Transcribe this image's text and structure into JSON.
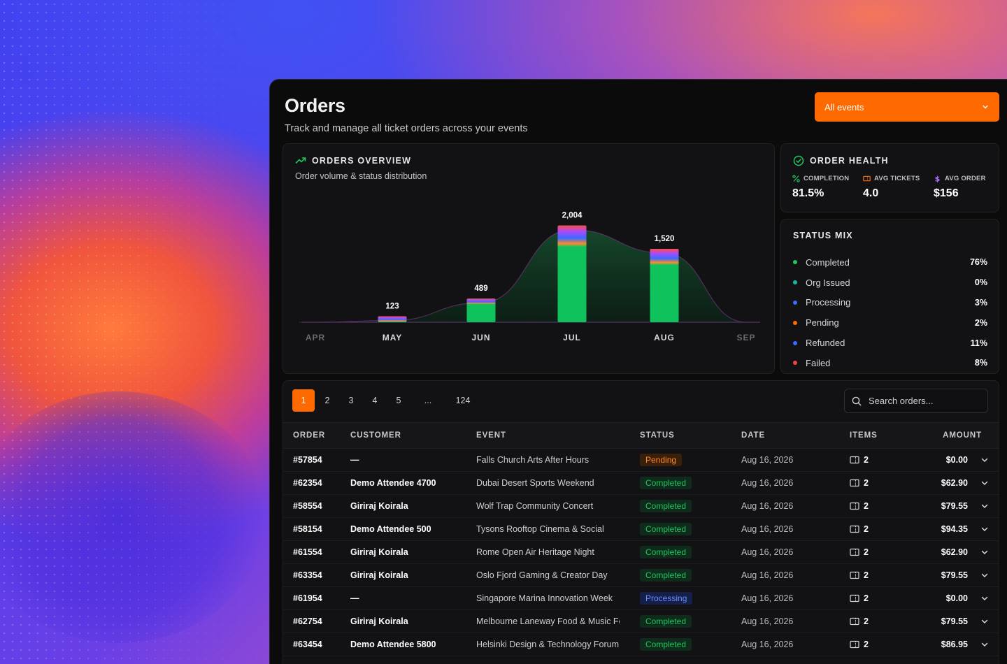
{
  "page": {
    "title": "Orders",
    "subtitle": "Track and manage all ticket orders across your events",
    "event_filter": "All events"
  },
  "overview": {
    "heading": "ORDERS OVERVIEW",
    "subheading": "Order volume & status distribution"
  },
  "chart_data": {
    "type": "bar",
    "categories": [
      "APR",
      "MAY",
      "JUN",
      "JUL",
      "AUG",
      "SEP"
    ],
    "values": [
      0,
      123,
      489,
      2004,
      1520,
      0
    ],
    "value_labels": [
      "",
      "123",
      "489",
      "2,004",
      "1,520",
      ""
    ],
    "colors": {
      "bar": "#10c25c",
      "area": "#0f3a22"
    },
    "ylim": [
      0,
      2100
    ],
    "grid": false
  },
  "health": {
    "heading": "ORDER HEALTH",
    "metrics": [
      {
        "label": "COMPLETION",
        "value": "81.5%",
        "icon": "percent-icon",
        "color": "#22c55e"
      },
      {
        "label": "AVG TICKETS",
        "value": "4.0",
        "icon": "ticket-icon",
        "color": "#ff6a00"
      },
      {
        "label": "AVG ORDER",
        "value": "$156",
        "icon": "dollar-icon",
        "color": "#a970ff"
      }
    ]
  },
  "status_mix": {
    "heading": "STATUS MIX",
    "items": [
      {
        "name": "Completed",
        "value": "76%",
        "color": "#22c55e"
      },
      {
        "name": "Org Issued",
        "value": "0%",
        "color": "#14b8a6"
      },
      {
        "name": "Processing",
        "value": "3%",
        "color": "#3b6cff"
      },
      {
        "name": "Pending",
        "value": "2%",
        "color": "#ff6a00"
      },
      {
        "name": "Refunded",
        "value": "11%",
        "color": "#3b6cff"
      },
      {
        "name": "Failed",
        "value": "8%",
        "color": "#ef4444"
      }
    ]
  },
  "pagination": {
    "pages": [
      "1",
      "2",
      "3",
      "4",
      "5",
      "...",
      "124"
    ],
    "active": "1"
  },
  "search": {
    "placeholder": "Search orders..."
  },
  "table": {
    "headers": {
      "order": "ORDER",
      "customer": "CUSTOMER",
      "event": "EVENT",
      "status": "STATUS",
      "date": "DATE",
      "items": "ITEMS",
      "amount": "AMOUNT"
    },
    "rows": [
      {
        "order": "#57854",
        "customer": "—",
        "event": "Falls Church Arts After Hours",
        "status": "Pending",
        "status_key": "pending",
        "date": "Aug 16, 2026",
        "items": "2",
        "amount": "$0.00"
      },
      {
        "order": "#62354",
        "customer": "Demo Attendee 4700",
        "event": "Dubai Desert Sports Weekend",
        "status": "Completed",
        "status_key": "completed",
        "date": "Aug 16, 2026",
        "items": "2",
        "amount": "$62.90"
      },
      {
        "order": "#58554",
        "customer": "Giriraj Koirala",
        "event": "Wolf Trap Community Concert",
        "status": "Completed",
        "status_key": "completed",
        "date": "Aug 16, 2026",
        "items": "2",
        "amount": "$79.55"
      },
      {
        "order": "#58154",
        "customer": "Demo Attendee 500",
        "event": "Tysons Rooftop Cinema & Social",
        "status": "Completed",
        "status_key": "completed",
        "date": "Aug 16, 2026",
        "items": "2",
        "amount": "$94.35"
      },
      {
        "order": "#61554",
        "customer": "Giriraj Koirala",
        "event": "Rome Open Air Heritage Night",
        "status": "Completed",
        "status_key": "completed",
        "date": "Aug 16, 2026",
        "items": "2",
        "amount": "$62.90"
      },
      {
        "order": "#63354",
        "customer": "Giriraj Koirala",
        "event": "Oslo Fjord Gaming & Creator Day",
        "status": "Completed",
        "status_key": "completed",
        "date": "Aug 16, 2026",
        "items": "2",
        "amount": "$79.55"
      },
      {
        "order": "#61954",
        "customer": "—",
        "event": "Singapore Marina Innovation Week",
        "status": "Processing",
        "status_key": "processing",
        "date": "Aug 16, 2026",
        "items": "2",
        "amount": "$0.00"
      },
      {
        "order": "#62754",
        "customer": "Giriraj Koirala",
        "event": "Melbourne Laneway Food & Music Fest",
        "status": "Completed",
        "status_key": "completed",
        "date": "Aug 16, 2026",
        "items": "2",
        "amount": "$79.55"
      },
      {
        "order": "#63454",
        "customer": "Demo Attendee 5800",
        "event": "Helsinki Design & Technology Forum",
        "status": "Completed",
        "status_key": "completed",
        "date": "Aug 16, 2026",
        "items": "2",
        "amount": "$86.95"
      }
    ]
  }
}
